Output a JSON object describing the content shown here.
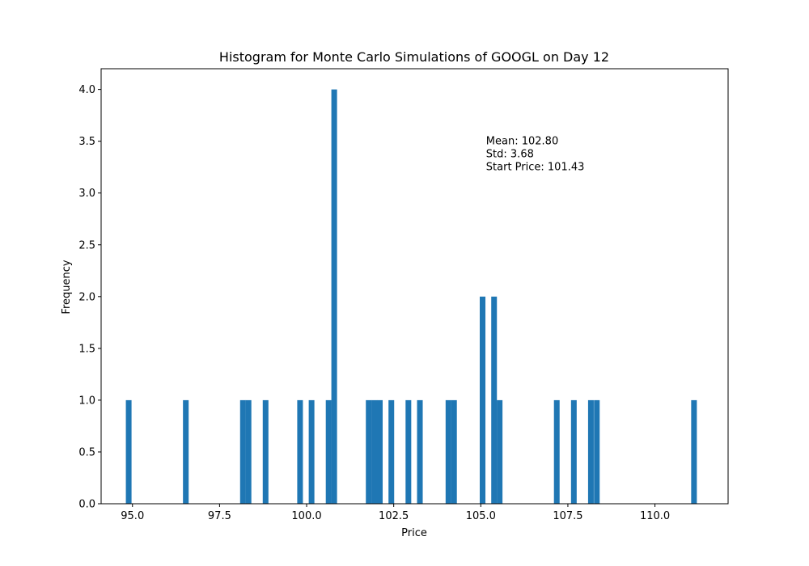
{
  "chart_data": {
    "type": "bar",
    "title": "Histogram for Monte Carlo Simulations of GOOGL on Day 12",
    "xlabel": "Price",
    "ylabel": "Frequency",
    "xlim": [
      94.1,
      112.1
    ],
    "ylim": [
      0,
      4.2
    ],
    "grid": false,
    "bar_color": "#1f77b4",
    "bin_width": 0.163,
    "xticks": [
      {
        "value": 95.0,
        "label": "95.0"
      },
      {
        "value": 97.5,
        "label": "97.5"
      },
      {
        "value": 100.0,
        "label": "100.0"
      },
      {
        "value": 102.5,
        "label": "102.5"
      },
      {
        "value": 105.0,
        "label": "105.0"
      },
      {
        "value": 107.5,
        "label": "107.5"
      },
      {
        "value": 110.0,
        "label": "110.0"
      }
    ],
    "yticks": [
      {
        "value": 0.0,
        "label": "0.0"
      },
      {
        "value": 0.5,
        "label": "0.5"
      },
      {
        "value": 1.0,
        "label": "1.0"
      },
      {
        "value": 1.5,
        "label": "1.5"
      },
      {
        "value": 2.0,
        "label": "2.0"
      },
      {
        "value": 2.5,
        "label": "2.5"
      },
      {
        "value": 3.0,
        "label": "3.0"
      },
      {
        "value": 3.5,
        "label": "3.5"
      },
      {
        "value": 4.0,
        "label": "4.0"
      }
    ],
    "bins": [
      {
        "x": 94.81,
        "count": 1
      },
      {
        "x": 96.45,
        "count": 1
      },
      {
        "x": 98.09,
        "count": 1
      },
      {
        "x": 98.25,
        "count": 1
      },
      {
        "x": 98.74,
        "count": 1
      },
      {
        "x": 99.73,
        "count": 1
      },
      {
        "x": 100.06,
        "count": 1
      },
      {
        "x": 100.55,
        "count": 1
      },
      {
        "x": 100.71,
        "count": 4
      },
      {
        "x": 101.7,
        "count": 1
      },
      {
        "x": 101.86,
        "count": 1
      },
      {
        "x": 102.02,
        "count": 1
      },
      {
        "x": 102.35,
        "count": 1
      },
      {
        "x": 102.84,
        "count": 1
      },
      {
        "x": 103.17,
        "count": 1
      },
      {
        "x": 103.99,
        "count": 1
      },
      {
        "x": 104.15,
        "count": 1
      },
      {
        "x": 104.97,
        "count": 2
      },
      {
        "x": 105.3,
        "count": 2
      },
      {
        "x": 105.46,
        "count": 1
      },
      {
        "x": 107.1,
        "count": 1
      },
      {
        "x": 107.59,
        "count": 1
      },
      {
        "x": 108.08,
        "count": 1
      },
      {
        "x": 108.25,
        "count": 1
      },
      {
        "x": 111.04,
        "count": 1
      }
    ],
    "annotation": {
      "anchor_x": 105.15,
      "anchor_y": 3.5,
      "lines": [
        "Mean: 102.80",
        "Std: 3.68",
        "Start Price: 101.43"
      ]
    }
  }
}
